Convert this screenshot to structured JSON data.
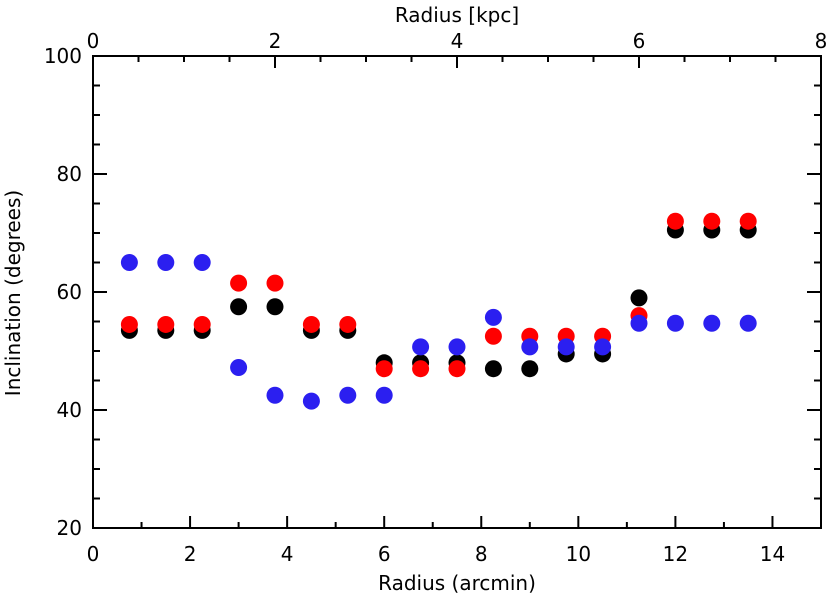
{
  "chart_data": {
    "type": "scatter",
    "xlabel": "Radius (arcmin)",
    "ylabel": "Inclination (degrees)",
    "x2label": "Radius [kpc]",
    "xlim": [
      0,
      15
    ],
    "ylim": [
      20,
      100
    ],
    "x2lim": [
      0,
      8
    ],
    "xticks": [
      "0",
      "2",
      "4",
      "6",
      "8",
      "10",
      "12",
      "14"
    ],
    "yticks": [
      "20",
      "40",
      "60",
      "80",
      "100"
    ],
    "x2ticks": [
      "0",
      "2",
      "4",
      "6",
      "8"
    ],
    "grid": false,
    "series": [
      {
        "color": "#000000",
        "points": [
          [
            0.75,
            53.5
          ],
          [
            1.5,
            53.5
          ],
          [
            2.25,
            53.5
          ],
          [
            3.0,
            57.5
          ],
          [
            3.75,
            57.5
          ],
          [
            4.5,
            53.5
          ],
          [
            5.25,
            53.5
          ],
          [
            6.0,
            48.0
          ],
          [
            6.75,
            48.0
          ],
          [
            7.5,
            48.0
          ],
          [
            8.25,
            47.0
          ],
          [
            9.0,
            47.0
          ],
          [
            9.75,
            49.5
          ],
          [
            10.5,
            49.5
          ],
          [
            11.25,
            59.0
          ],
          [
            12.0,
            70.5
          ],
          [
            12.75,
            70.5
          ],
          [
            13.5,
            70.5
          ]
        ]
      },
      {
        "color": "#ff0000",
        "points": [
          [
            0.75,
            54.5
          ],
          [
            1.5,
            54.5
          ],
          [
            2.25,
            54.5
          ],
          [
            3.0,
            61.5
          ],
          [
            3.75,
            61.5
          ],
          [
            4.5,
            54.5
          ],
          [
            5.25,
            54.5
          ],
          [
            6.0,
            47.0
          ],
          [
            6.75,
            47.0
          ],
          [
            7.5,
            47.0
          ],
          [
            8.25,
            52.5
          ],
          [
            9.0,
            52.5
          ],
          [
            9.75,
            52.5
          ],
          [
            10.5,
            52.5
          ],
          [
            11.25,
            56.0
          ],
          [
            12.0,
            72.0
          ],
          [
            12.75,
            72.0
          ],
          [
            13.5,
            72.0
          ]
        ]
      },
      {
        "color": "#2b1ff0",
        "points": [
          [
            0.75,
            65.0
          ],
          [
            1.5,
            65.0
          ],
          [
            2.25,
            65.0
          ],
          [
            3.0,
            47.2
          ],
          [
            3.75,
            42.5
          ],
          [
            4.5,
            41.5
          ],
          [
            5.25,
            42.5
          ],
          [
            6.0,
            42.5
          ],
          [
            6.75,
            50.7
          ],
          [
            7.5,
            50.7
          ],
          [
            8.25,
            55.7
          ],
          [
            9.0,
            50.7
          ],
          [
            9.75,
            50.7
          ],
          [
            10.5,
            50.7
          ],
          [
            11.25,
            54.7
          ],
          [
            12.0,
            54.7
          ],
          [
            12.75,
            54.7
          ],
          [
            13.5,
            54.7
          ]
        ]
      }
    ]
  }
}
